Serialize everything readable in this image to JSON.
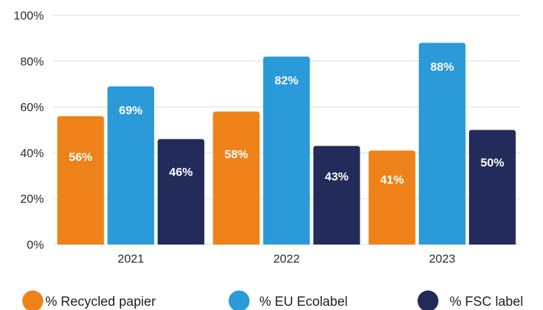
{
  "chart_data": {
    "type": "bar",
    "categories": [
      "2021",
      "2022",
      "2023"
    ],
    "series": [
      {
        "name": "% Recycled papier",
        "values": [
          56,
          58,
          41
        ],
        "labels": [
          "56%",
          "58%",
          "41%"
        ],
        "color": "#EE8219"
      },
      {
        "name": "% EU Ecolabel",
        "values": [
          69,
          82,
          88
        ],
        "labels": [
          "69%",
          "82%",
          "88%"
        ],
        "color": "#2A9AD8"
      },
      {
        "name": "% FSC label",
        "values": [
          46,
          43,
          50
        ],
        "labels": [
          "46%",
          "43%",
          "50%"
        ],
        "color": "#232B5B"
      }
    ],
    "yticks": [
      "0%",
      "20%",
      "40%",
      "60%",
      "80%",
      "100%"
    ],
    "ylim": [
      0,
      100
    ],
    "grid": true,
    "legend_position": "bottom",
    "title": "",
    "xlabel": "",
    "ylabel": ""
  }
}
